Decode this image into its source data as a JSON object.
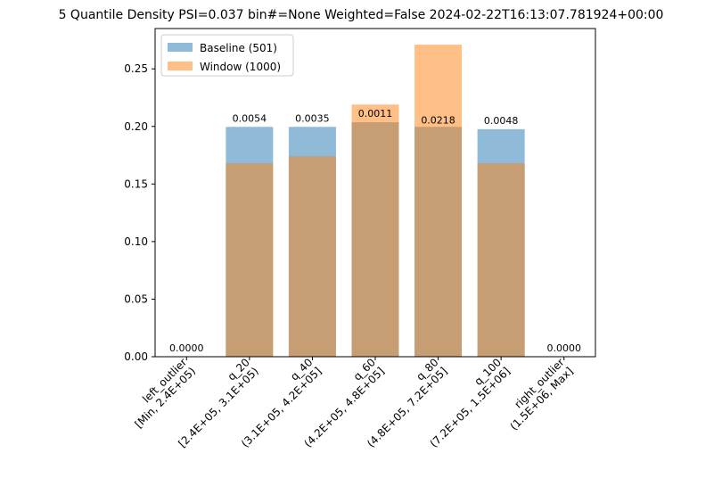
{
  "chart_data": {
    "type": "bar",
    "title": "5 Quantile Density PSI=0.037 bin#=None Weighted=False 2024-02-22T16:13:07.781924+00:00",
    "xlabel": "",
    "ylabel": "",
    "ylim": [
      0,
      0.285
    ],
    "yticks": [
      "0.00",
      "0.05",
      "0.10",
      "0.15",
      "0.20",
      "0.25"
    ],
    "grid": false,
    "legend_position": "top-left",
    "categories": [
      [
        "left_outlier",
        "[Min, 2.4E+05)"
      ],
      [
        "q_20",
        "[2.4E+05, 3.1E+05)"
      ],
      [
        "q_40",
        "(3.1E+05, 4.2E+05]"
      ],
      [
        "q_60",
        "(4.2E+05, 4.8E+05]"
      ],
      [
        "q_80",
        "(4.8E+05, 7.2E+05]"
      ],
      [
        "q_100",
        "(7.2E+05, 1.5E+06]"
      ],
      [
        "right_outlier",
        "(1.5E+06, Max]"
      ]
    ],
    "series": [
      {
        "name": "Baseline (501)",
        "color": "#1f77b4",
        "opacity": 0.5,
        "values": [
          0.0,
          0.1996,
          0.1996,
          0.2036,
          0.1996,
          0.1976,
          0.0
        ]
      },
      {
        "name": "Window (1000)",
        "color": "#ff7f0e",
        "opacity": 0.5,
        "values": [
          0.0,
          0.168,
          0.174,
          0.219,
          0.271,
          0.168,
          0.0
        ]
      }
    ],
    "bar_labels": [
      "0.0000",
      "0.0054",
      "0.0035",
      "0.0011",
      "0.0218",
      "0.0048",
      "0.0000"
    ]
  }
}
